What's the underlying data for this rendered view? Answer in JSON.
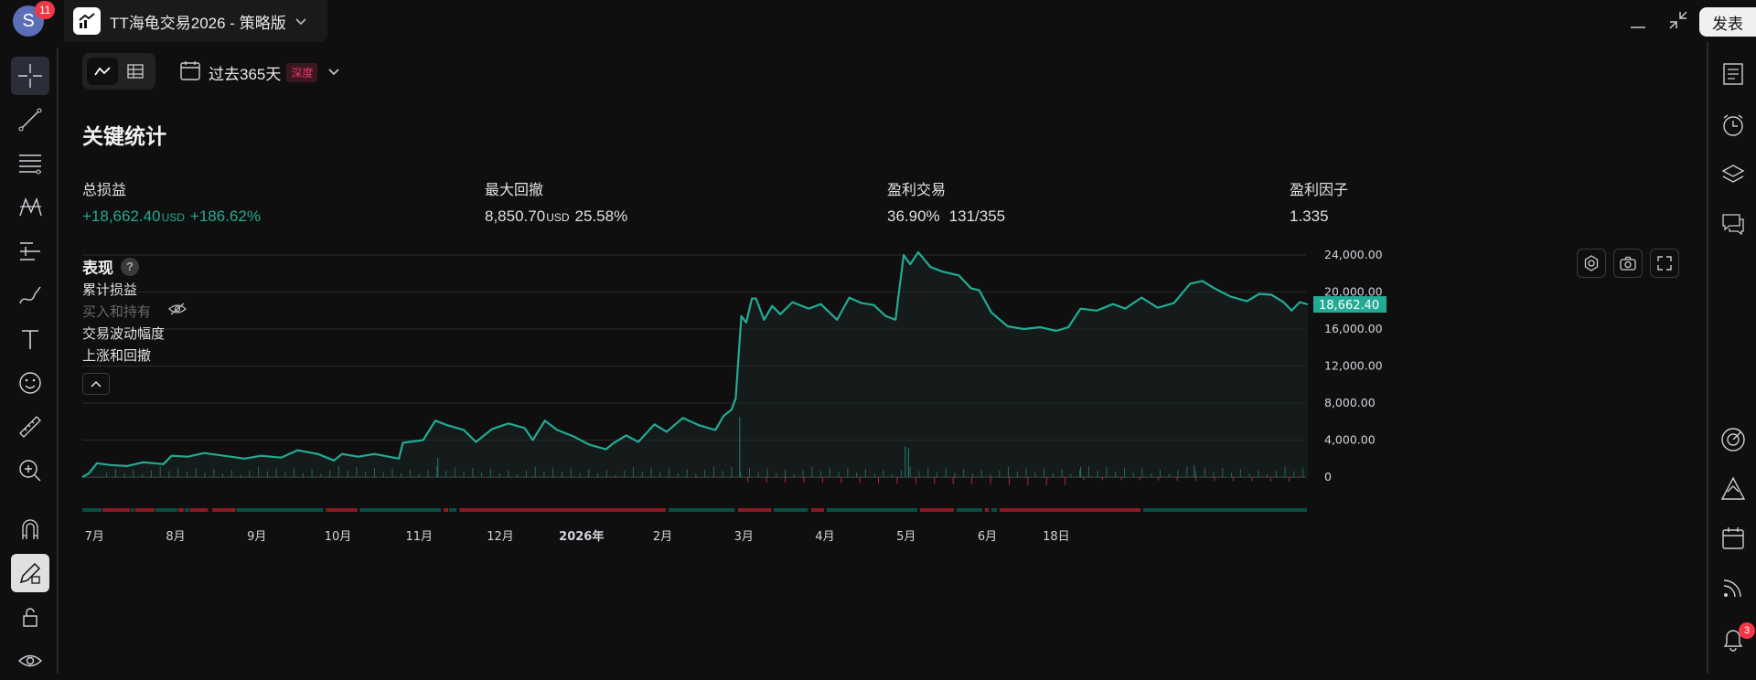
{
  "window": {
    "avatar_letter": "S",
    "avatar_badge": "11",
    "tab_title": "TT海龟交易2026 - 策略版",
    "publish_label": "发表"
  },
  "toolbar": {
    "range_label": "过去365天",
    "range_badge": "深度"
  },
  "stats": {
    "title": "关键统计",
    "items": [
      {
        "label": "总损益",
        "value": "+18,662.40",
        "unit": "USD",
        "extra": "+186.62%",
        "tone": "pos"
      },
      {
        "label": "最大回撤",
        "value": "8,850.70",
        "unit": "USD",
        "extra": "25.58%",
        "tone": "neutral"
      },
      {
        "label": "盈利交易",
        "value": "36.90%",
        "unit": "",
        "extra": "131/355",
        "tone": "neutral"
      },
      {
        "label": "盈利因子",
        "value": "1.335",
        "unit": "",
        "extra": "",
        "tone": "neutral"
      }
    ]
  },
  "performance": {
    "title": "表现",
    "help": "?",
    "legend": [
      {
        "label": "累计损益",
        "muted": false
      },
      {
        "label": "买入和持有",
        "muted": true
      },
      {
        "label": "交易波动幅度",
        "muted": false
      },
      {
        "label": "上涨和回撤",
        "muted": false
      }
    ]
  },
  "right_toolbar": {
    "notification_count": "3"
  },
  "colors": {
    "line": "#22ab94",
    "up": "#22ab94",
    "down": "#f23645",
    "badge_bg": "#3a1820",
    "badge_fg": "#f23673"
  },
  "chart_data": {
    "type": "line",
    "ylim": [
      0,
      24000
    ],
    "y_ticks": [
      "24,000.00",
      "20,000.00",
      "16,000.00",
      "12,000.00",
      "8,000.00",
      "4,000.00",
      "0"
    ],
    "y_tick_values": [
      24000,
      20000,
      16000,
      12000,
      8000,
      4000,
      0
    ],
    "last_value": 18662.4,
    "last_value_label": "18,662.40",
    "x_labels": [
      {
        "label": "7月",
        "month": 0.15,
        "bold": false
      },
      {
        "label": "8月",
        "month": 1.15,
        "bold": false
      },
      {
        "label": "9月",
        "month": 2.15,
        "bold": false
      },
      {
        "label": "10月",
        "month": 3.15,
        "bold": false
      },
      {
        "label": "11月",
        "month": 4.15,
        "bold": false
      },
      {
        "label": "12月",
        "month": 5.15,
        "bold": false
      },
      {
        "label": "2026年",
        "month": 6.15,
        "bold": true
      },
      {
        "label": "2月",
        "month": 7.15,
        "bold": false
      },
      {
        "label": "3月",
        "month": 8.15,
        "bold": false
      },
      {
        "label": "4月",
        "month": 9.15,
        "bold": false
      },
      {
        "label": "5月",
        "month": 10.15,
        "bold": false
      },
      {
        "label": "6月",
        "month": 11.15,
        "bold": false
      },
      {
        "label": "18日",
        "month": 12.0,
        "bold": false
      }
    ],
    "cumulative_pnl": [
      [
        0.0,
        0
      ],
      [
        0.08,
        400
      ],
      [
        0.18,
        1500
      ],
      [
        0.35,
        1300
      ],
      [
        0.55,
        1200
      ],
      [
        0.75,
        1600
      ],
      [
        1.0,
        1400
      ],
      [
        1.1,
        2300
      ],
      [
        1.3,
        2200
      ],
      [
        1.5,
        2600
      ],
      [
        1.75,
        2300
      ],
      [
        2.0,
        2000
      ],
      [
        2.2,
        2300
      ],
      [
        2.45,
        2100
      ],
      [
        2.65,
        2900
      ],
      [
        2.9,
        2500
      ],
      [
        3.1,
        1800
      ],
      [
        3.2,
        2500
      ],
      [
        3.4,
        2200
      ],
      [
        3.6,
        2500
      ],
      [
        3.9,
        2000
      ],
      [
        3.95,
        3700
      ],
      [
        4.2,
        4000
      ],
      [
        4.35,
        6100
      ],
      [
        4.5,
        5600
      ],
      [
        4.7,
        5100
      ],
      [
        4.85,
        3800
      ],
      [
        5.05,
        5200
      ],
      [
        5.25,
        5800
      ],
      [
        5.45,
        5300
      ],
      [
        5.55,
        4000
      ],
      [
        5.7,
        6100
      ],
      [
        5.85,
        5100
      ],
      [
        6.05,
        4400
      ],
      [
        6.25,
        3500
      ],
      [
        6.45,
        3000
      ],
      [
        6.55,
        3700
      ],
      [
        6.7,
        4500
      ],
      [
        6.85,
        3800
      ],
      [
        7.05,
        5700
      ],
      [
        7.2,
        4900
      ],
      [
        7.4,
        6400
      ],
      [
        7.6,
        5600
      ],
      [
        7.8,
        5100
      ],
      [
        7.9,
        6600
      ],
      [
        8.0,
        7300
      ],
      [
        8.05,
        8500
      ],
      [
        8.12,
        17400
      ],
      [
        8.18,
        16700
      ],
      [
        8.25,
        19300
      ],
      [
        8.3,
        19300
      ],
      [
        8.4,
        17000
      ],
      [
        8.5,
        18500
      ],
      [
        8.6,
        17600
      ],
      [
        8.75,
        18900
      ],
      [
        8.95,
        18200
      ],
      [
        9.1,
        18700
      ],
      [
        9.3,
        17000
      ],
      [
        9.45,
        19400
      ],
      [
        9.6,
        18800
      ],
      [
        9.75,
        18600
      ],
      [
        9.9,
        17400
      ],
      [
        10.02,
        17000
      ],
      [
        10.05,
        19200
      ],
      [
        10.12,
        24000
      ],
      [
        10.2,
        23000
      ],
      [
        10.3,
        24300
      ],
      [
        10.45,
        22700
      ],
      [
        10.6,
        22200
      ],
      [
        10.8,
        21800
      ],
      [
        10.95,
        20400
      ],
      [
        11.05,
        20200
      ],
      [
        11.2,
        17800
      ],
      [
        11.4,
        16300
      ],
      [
        11.6,
        16000
      ],
      [
        11.8,
        16200
      ],
      [
        12.0,
        15800
      ],
      [
        12.15,
        16200
      ],
      [
        12.3,
        18200
      ],
      [
        12.5,
        18000
      ],
      [
        12.7,
        18700
      ],
      [
        12.85,
        18200
      ],
      [
        13.05,
        19400
      ],
      [
        13.25,
        18300
      ],
      [
        13.45,
        18800
      ],
      [
        13.65,
        20900
      ],
      [
        13.8,
        21200
      ],
      [
        13.95,
        20400
      ],
      [
        14.15,
        19500
      ],
      [
        14.35,
        19000
      ],
      [
        14.5,
        19800
      ],
      [
        14.65,
        19700
      ],
      [
        14.8,
        18900
      ],
      [
        14.9,
        18000
      ],
      [
        15.0,
        18900
      ],
      [
        15.1,
        18662
      ]
    ],
    "pnl_spikes": [
      [
        8.1,
        6500
      ],
      [
        10.14,
        3300
      ],
      [
        10.18,
        3100
      ],
      [
        4.38,
        2100
      ],
      [
        12.3,
        1100
      ],
      [
        13.7,
        1300
      ]
    ],
    "drawup_drawdown": [
      [
        "up",
        0.0,
        0.25
      ],
      [
        "down",
        0.25,
        0.6
      ],
      [
        "up",
        0.6,
        0.65
      ],
      [
        "down",
        0.65,
        0.9
      ],
      [
        "up",
        0.9,
        1.18
      ],
      [
        "down",
        1.18,
        1.26
      ],
      [
        "up",
        1.26,
        1.33
      ],
      [
        "down",
        1.33,
        1.56
      ],
      [
        "down",
        1.6,
        1.9
      ],
      [
        "up",
        1.9,
        2.98
      ],
      [
        "down",
        3.0,
        3.4
      ],
      [
        "up",
        3.42,
        4.43
      ],
      [
        "down",
        4.45,
        4.52
      ],
      [
        "up",
        4.52,
        4.62
      ],
      [
        "down",
        4.65,
        7.2
      ],
      [
        "up",
        7.22,
        8.05
      ],
      [
        "down",
        8.08,
        8.5
      ],
      [
        "up",
        8.52,
        8.95
      ],
      [
        "down",
        8.98,
        9.15
      ],
      [
        "up",
        9.17,
        10.3
      ],
      [
        "down",
        10.32,
        10.75
      ],
      [
        "up",
        10.77,
        11.1
      ],
      [
        "down",
        11.12,
        11.18
      ],
      [
        "up",
        11.2,
        11.28
      ],
      [
        "down",
        11.3,
        13.05
      ],
      [
        "up",
        13.07,
        15.1
      ]
    ]
  }
}
